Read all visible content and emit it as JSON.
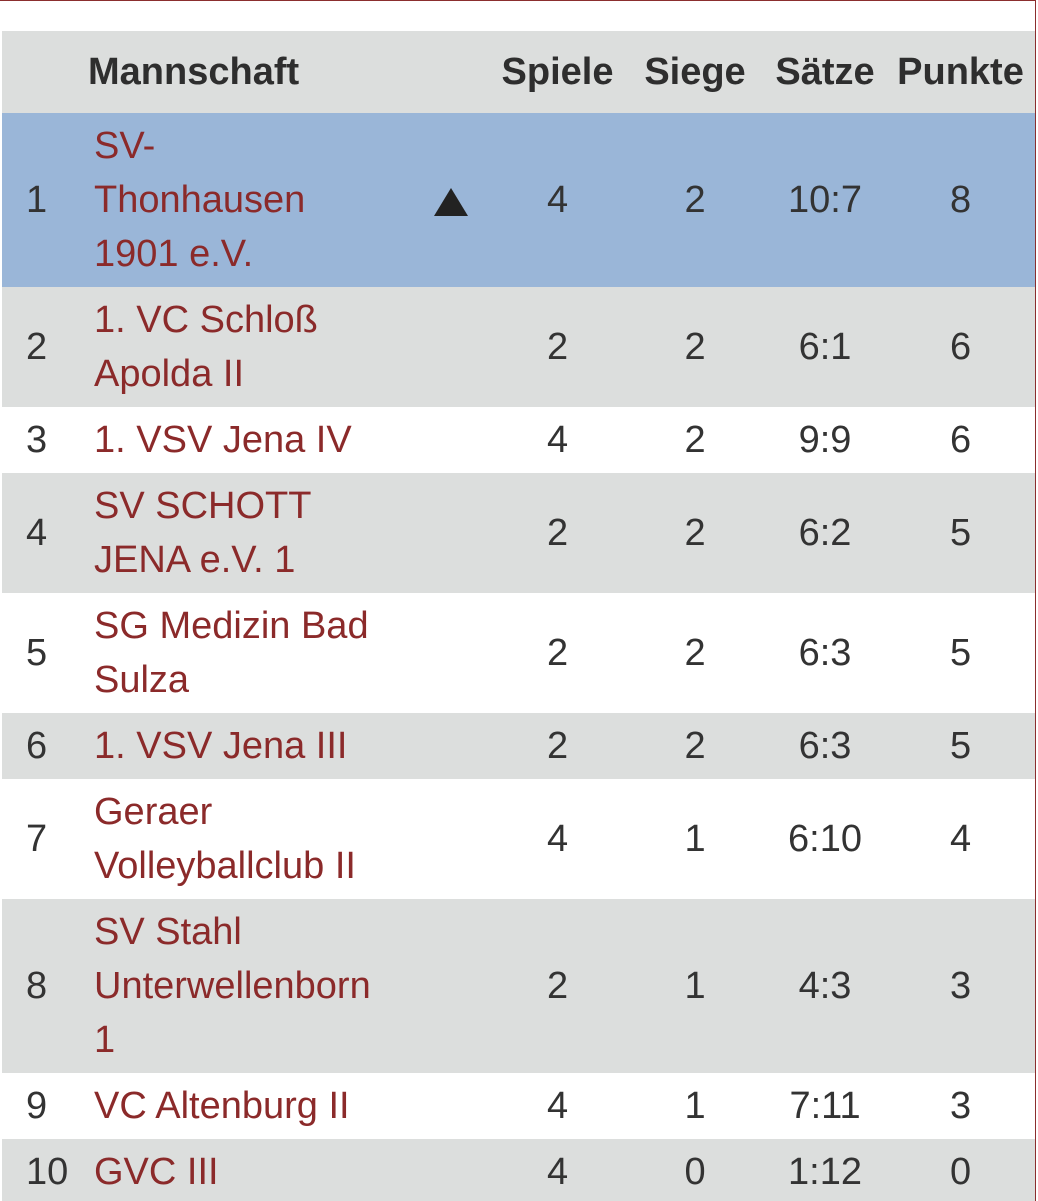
{
  "header": {
    "rank": "",
    "team": "Mannschaft",
    "spiele": "Spiele",
    "siege": "Siege",
    "saetze": "Sätze",
    "punkte": "Punkte"
  },
  "rows": [
    {
      "rank": "1",
      "team": "SV-\nThonhausen\n1901 e.V.",
      "trend": "up-triangle-icon",
      "spiele": "4",
      "siege": "2",
      "saetze": "10:7",
      "punkte": "8"
    },
    {
      "rank": "2",
      "team": "1. VC Schloß Apolda II",
      "trend": "",
      "spiele": "2",
      "siege": "2",
      "saetze": "6:1",
      "punkte": "6"
    },
    {
      "rank": "3",
      "team": "1. VSV Jena IV",
      "trend": "",
      "spiele": "4",
      "siege": "2",
      "saetze": "9:9",
      "punkte": "6"
    },
    {
      "rank": "4",
      "team": "SV SCHOTT JENA e.V. 1",
      "trend": "",
      "spiele": "2",
      "siege": "2",
      "saetze": "6:2",
      "punkte": "5"
    },
    {
      "rank": "5",
      "team": "SG Medizin Bad Sulza",
      "trend": "",
      "spiele": "2",
      "siege": "2",
      "saetze": "6:3",
      "punkte": "5"
    },
    {
      "rank": "6",
      "team": "1. VSV Jena III",
      "trend": "",
      "spiele": "2",
      "siege": "2",
      "saetze": "6:3",
      "punkte": "5"
    },
    {
      "rank": "7",
      "team": "Geraer Volleyballclub II",
      "trend": "",
      "spiele": "4",
      "siege": "1",
      "saetze": "6:10",
      "punkte": "4"
    },
    {
      "rank": "8",
      "team": "SV Stahl Unterwellenborn 1",
      "trend": "",
      "spiele": "2",
      "siege": "1",
      "saetze": "4:3",
      "punkte": "3"
    },
    {
      "rank": "9",
      "team": "VC Altenburg II",
      "trend": "",
      "spiele": "4",
      "siege": "1",
      "saetze": "7:11",
      "punkte": "3"
    },
    {
      "rank": "10",
      "team": "GVC III",
      "trend": "",
      "spiele": "4",
      "siege": "0",
      "saetze": "1:12",
      "punkte": "0"
    }
  ]
}
